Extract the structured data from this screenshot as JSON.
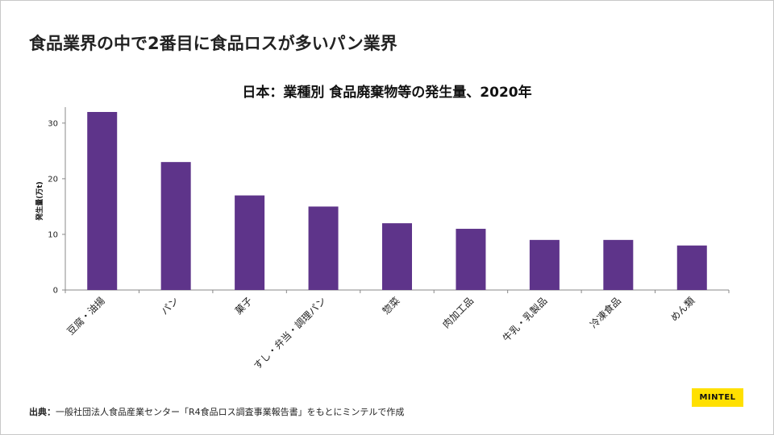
{
  "slide": {
    "title": "食品業界の中で2番目に食品ロスが多いパン業界",
    "source_label": "出典：",
    "source_text": "一般社団法人食品産業センター「R4食品ロス調査事業報告書」をもとにミンテルで作成",
    "logo_text": "MINTEL"
  },
  "colors": {
    "bar": "#5e348a",
    "axis": "#888888"
  },
  "chart_data": {
    "type": "bar",
    "title": "日本：業種別 食品廃棄物等の発生量、2020年",
    "xlabel": "",
    "ylabel": "発生量(万t)",
    "categories": [
      "豆腐・油揚",
      "パン",
      "菓子",
      "すし・弁当・調理パン",
      "惣菜",
      "肉加工品",
      "牛乳・乳製品",
      "冷凍食品",
      "めん類"
    ],
    "values": [
      32,
      23,
      17,
      15,
      12,
      11,
      9,
      9,
      8
    ],
    "ylim": [
      0,
      32
    ],
    "yticks": [
      0,
      10,
      20,
      30
    ],
    "grid": false,
    "legend": "none"
  }
}
